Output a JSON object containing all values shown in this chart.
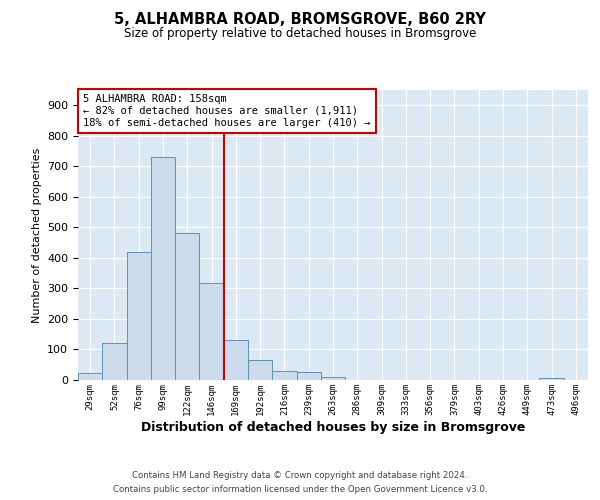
{
  "title1": "5, ALHAMBRA ROAD, BROMSGROVE, B60 2RY",
  "title2": "Size of property relative to detached houses in Bromsgrove",
  "xlabel": "Distribution of detached houses by size in Bromsgrove",
  "ylabel": "Number of detached properties",
  "bar_labels": [
    "29sqm",
    "52sqm",
    "76sqm",
    "99sqm",
    "122sqm",
    "146sqm",
    "169sqm",
    "192sqm",
    "216sqm",
    "239sqm",
    "263sqm",
    "286sqm",
    "309sqm",
    "333sqm",
    "356sqm",
    "379sqm",
    "403sqm",
    "426sqm",
    "449sqm",
    "473sqm",
    "496sqm"
  ],
  "bar_values": [
    22,
    122,
    420,
    730,
    480,
    318,
    130,
    65,
    30,
    25,
    10,
    0,
    0,
    0,
    0,
    0,
    0,
    0,
    0,
    7,
    0
  ],
  "bar_color": "#ccdcec",
  "bar_edge_color": "#6090b8",
  "vline_color": "#cc0000",
  "annotation_text": "5 ALHAMBRA ROAD: 158sqm\n← 82% of detached houses are smaller (1,911)\n18% of semi-detached houses are larger (410) →",
  "ylim": [
    0,
    950
  ],
  "yticks": [
    0,
    100,
    200,
    300,
    400,
    500,
    600,
    700,
    800,
    900
  ],
  "footer1": "Contains HM Land Registry data © Crown copyright and database right 2024.",
  "footer2": "Contains public sector information licensed under the Open Government Licence v3.0.",
  "fig_bg": "#ffffff",
  "plot_bg": "#dce8f4"
}
